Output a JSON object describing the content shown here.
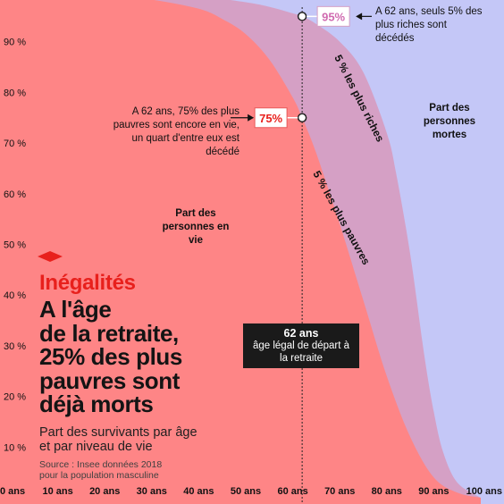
{
  "chart_data": {
    "type": "area",
    "xlim": [
      0,
      100
    ],
    "ylim": [
      0,
      100
    ],
    "x_ticks": [
      "0 ans",
      "10 ans",
      "20 ans",
      "30 ans",
      "40 ans",
      "50 ans",
      "60 ans",
      "70 ans",
      "80 ans",
      "90 ans",
      "100 ans"
    ],
    "y_ticks": [
      "10 %",
      "20 %",
      "30 %",
      "40 %",
      "50 %",
      "60 %",
      "70 %",
      "80 %",
      "90 %"
    ],
    "series": [
      {
        "name": "5 % les plus pauvres",
        "color": "#fe8586",
        "x": [
          0,
          10,
          20,
          30,
          40,
          45,
          50,
          55,
          60,
          62,
          65,
          70,
          75,
          80,
          85,
          90,
          95,
          100
        ],
        "y": [
          100,
          99.7,
          99.2,
          98.3,
          96.5,
          94.5,
          91.5,
          86.5,
          79,
          75,
          68,
          54,
          39,
          24,
          12,
          4,
          1,
          0
        ]
      },
      {
        "name": "5 % les plus riches",
        "color": "#d5a0c5",
        "x": [
          0,
          10,
          20,
          30,
          40,
          50,
          55,
          60,
          62,
          65,
          70,
          75,
          80,
          82,
          85,
          88,
          90,
          92,
          95,
          100
        ],
        "y": [
          100,
          99.9,
          99.8,
          99.6,
          99,
          97.8,
          96.9,
          95.6,
          95,
          93.5,
          90,
          84,
          72,
          64,
          48,
          28,
          17,
          9,
          3,
          0
        ]
      }
    ],
    "reference_line": {
      "x": 62,
      "label": "62 ans",
      "sublabel": "âge légal de départ à la retraite"
    },
    "markers": [
      {
        "x": 62,
        "y": 95,
        "label": "95%"
      },
      {
        "x": 62,
        "y": 75,
        "label": "75%"
      }
    ],
    "area_labels": {
      "alive": "Part des personnes en vie",
      "dead": "Part des personnes mortes",
      "poorest": "5 % les plus pauvres",
      "richest": "5 % les plus riches"
    },
    "annotations": {
      "rich_note": "A 62 ans, seuls 5% des plus riches sont décédés",
      "poor_note": "A 62 ans, 75% des plus pauvres sont encore en vie, un quart d'entre eux est décédé"
    },
    "colors": {
      "dead_area": "#c4c7f7",
      "poor_area": "#fe8586",
      "rich_band": "#d5a0c5",
      "accent": "#e8201c"
    }
  },
  "header": {
    "section": "Inégalités",
    "headline_lines": [
      "A l'âge",
      "de la retraite,",
      "25% des plus",
      "pauvres sont",
      "déjà morts"
    ],
    "subtitle_lines": [
      "Part des survivants par âge",
      "et par niveau de vie"
    ],
    "source_lines": [
      "Source : Insee données 2018",
      "pour la population masculine"
    ]
  }
}
